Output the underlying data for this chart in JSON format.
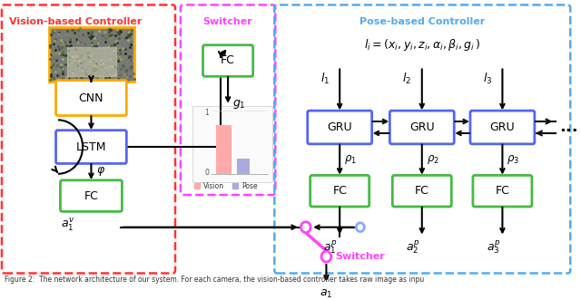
{
  "fig_width": 6.4,
  "fig_height": 3.31,
  "dpi": 100,
  "bg_color": "#ffffff",
  "vision_label_color": "#ff3333",
  "switcher_label_color": "#ff00ff",
  "pose_label_color": "#55aaee",
  "green_color": "#44bb44",
  "blue_color": "#5566ee",
  "orange_color": "#ffaa00",
  "bar_vision_color": "#ffaaaa",
  "bar_pose_color": "#aaaadd",
  "switcher_circle_color": "#ff44ff",
  "black": "#111111",
  "vision_label": "Vision-based Controller",
  "switcher_label": "Switcher",
  "pose_label": "Pose-based Controller",
  "caption": "Figure 2:  The network architecture of our system. For each camera, the vision-based controller takes raw image as inpu"
}
